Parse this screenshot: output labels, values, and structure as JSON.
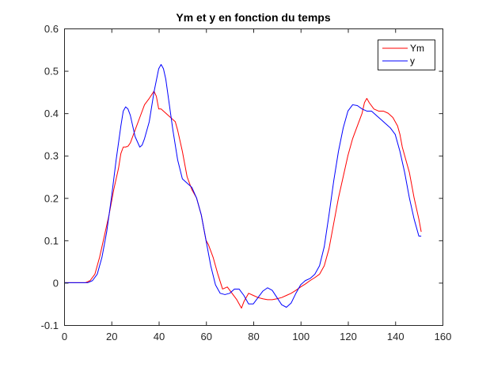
{
  "chart_data": {
    "type": "line",
    "title": "Ym et y en fonction du temps",
    "xlabel": "",
    "ylabel": "",
    "xlim": [
      0,
      160
    ],
    "ylim": [
      -0.1,
      0.6
    ],
    "grid": false,
    "legend_position": "top-right",
    "x_ticks": [
      0,
      20,
      40,
      60,
      80,
      100,
      120,
      140,
      160
    ],
    "x_tick_labels": [
      "0",
      "20",
      "40",
      "60",
      "80",
      "100",
      "120",
      "140",
      "160"
    ],
    "y_ticks": [
      -0.1,
      0,
      0.1,
      0.2,
      0.3,
      0.4,
      0.5,
      0.6
    ],
    "y_tick_labels": [
      "-0.1",
      "0",
      "0.1",
      "0.2",
      "0.3",
      "0.4",
      "0.5",
      "0.6"
    ],
    "series": [
      {
        "name": "Ym",
        "color": "#ff0000",
        "x": [
          0,
          9,
          11,
          13,
          15,
          17,
          19,
          21,
          23,
          24,
          25,
          26,
          27,
          28,
          30,
          32,
          34,
          36,
          38,
          39,
          40,
          41,
          43,
          45,
          47,
          48,
          50,
          52,
          54,
          56,
          58,
          60,
          61,
          63,
          65,
          67,
          69,
          71,
          73,
          75,
          76,
          78,
          80,
          82,
          84,
          86,
          88,
          90,
          92,
          94,
          96,
          98,
          100,
          102,
          104,
          106,
          108,
          110,
          112,
          114,
          116,
          118,
          120,
          122,
          124,
          126,
          127,
          128,
          129,
          131,
          133,
          135,
          137,
          139,
          141,
          142,
          143,
          144,
          146,
          148,
          150,
          151
        ],
        "values": [
          0,
          0,
          0.005,
          0.02,
          0.06,
          0.11,
          0.16,
          0.22,
          0.27,
          0.305,
          0.32,
          0.32,
          0.322,
          0.33,
          0.36,
          0.39,
          0.42,
          0.435,
          0.452,
          0.44,
          0.41,
          0.41,
          0.4,
          0.39,
          0.38,
          0.36,
          0.31,
          0.25,
          0.22,
          0.2,
          0.16,
          0.1,
          0.09,
          0.06,
          0.02,
          -0.015,
          -0.01,
          -0.025,
          -0.04,
          -0.06,
          -0.045,
          -0.025,
          -0.03,
          -0.035,
          -0.038,
          -0.04,
          -0.04,
          -0.038,
          -0.035,
          -0.03,
          -0.025,
          -0.018,
          -0.01,
          -0.003,
          0.005,
          0.012,
          0.02,
          0.04,
          0.08,
          0.14,
          0.2,
          0.25,
          0.3,
          0.34,
          0.37,
          0.4,
          0.425,
          0.435,
          0.425,
          0.41,
          0.405,
          0.405,
          0.4,
          0.39,
          0.37,
          0.35,
          0.32,
          0.3,
          0.26,
          0.2,
          0.15,
          0.12
        ]
      },
      {
        "name": "y",
        "color": "#0000ff",
        "x": [
          0,
          10,
          12,
          14,
          16,
          18,
          20,
          22,
          24,
          25,
          26,
          27,
          28,
          30,
          32,
          33,
          34,
          36,
          38,
          40,
          41,
          42,
          43,
          44,
          46,
          48,
          50,
          52,
          54,
          56,
          58,
          60,
          62,
          64,
          66,
          68,
          70,
          72,
          74,
          76,
          78,
          80,
          82,
          84,
          86,
          88,
          90,
          92,
          94,
          96,
          98,
          100,
          102,
          104,
          106,
          108,
          110,
          112,
          114,
          116,
          118,
          120,
          122,
          124,
          126,
          128,
          130,
          132,
          134,
          136,
          138,
          140,
          142,
          144,
          146,
          148,
          150,
          151
        ],
        "values": [
          0,
          0,
          0.005,
          0.02,
          0.06,
          0.12,
          0.2,
          0.29,
          0.37,
          0.405,
          0.415,
          0.41,
          0.395,
          0.345,
          0.32,
          0.325,
          0.34,
          0.38,
          0.45,
          0.505,
          0.515,
          0.505,
          0.48,
          0.44,
          0.36,
          0.29,
          0.245,
          0.235,
          0.225,
          0.2,
          0.16,
          0.1,
          0.04,
          -0.005,
          -0.025,
          -0.028,
          -0.025,
          -0.015,
          -0.015,
          -0.03,
          -0.05,
          -0.05,
          -0.035,
          -0.02,
          -0.012,
          -0.018,
          -0.035,
          -0.052,
          -0.058,
          -0.048,
          -0.025,
          -0.005,
          0.005,
          0.01,
          0.02,
          0.04,
          0.085,
          0.16,
          0.24,
          0.31,
          0.365,
          0.405,
          0.42,
          0.418,
          0.41,
          0.405,
          0.405,
          0.395,
          0.385,
          0.375,
          0.365,
          0.35,
          0.31,
          0.26,
          0.2,
          0.15,
          0.11,
          0.11
        ]
      }
    ]
  }
}
